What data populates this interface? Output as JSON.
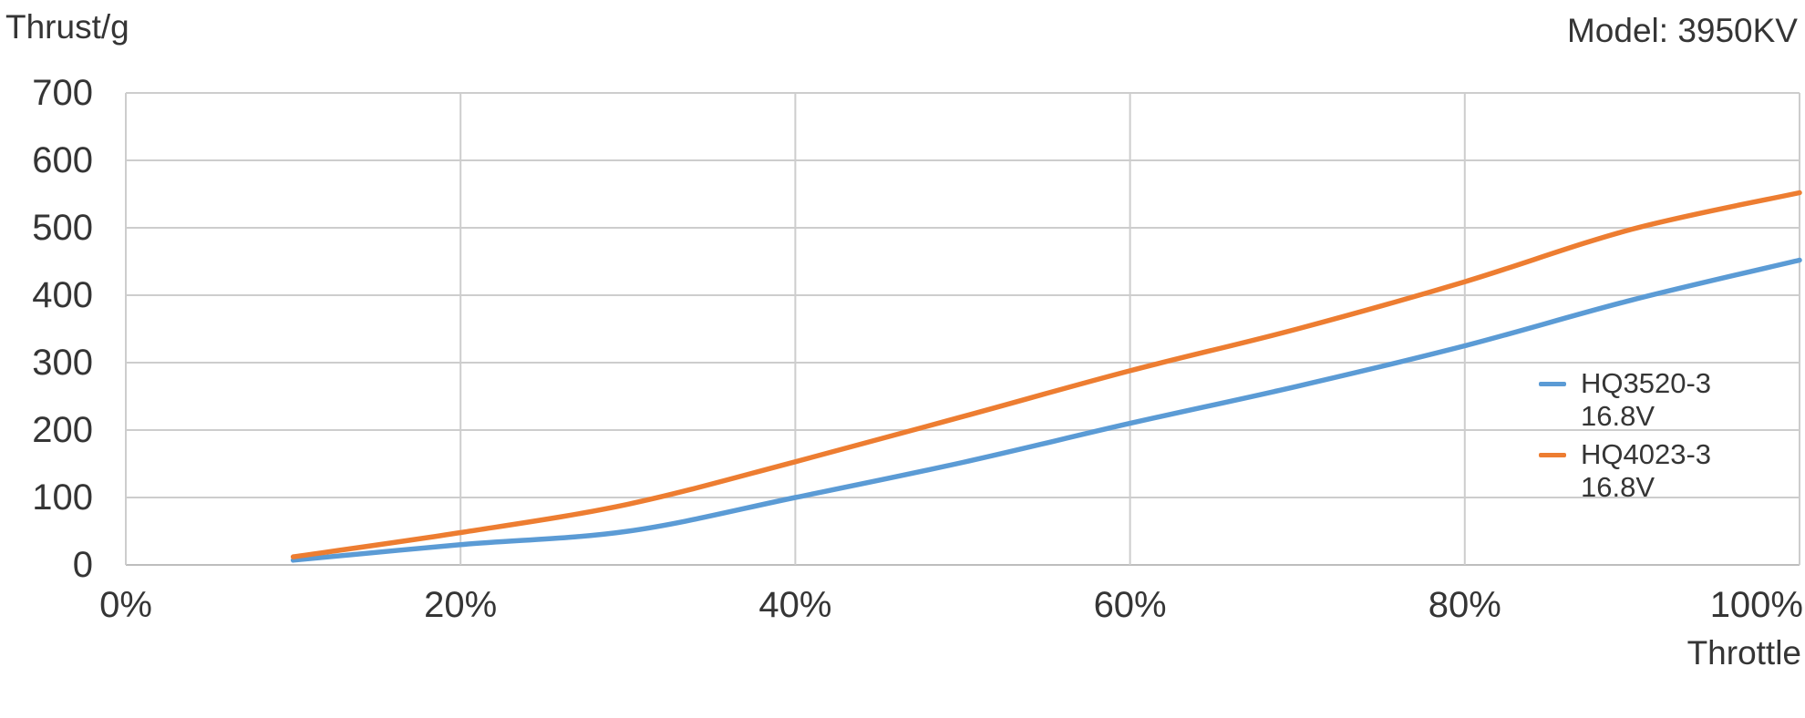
{
  "header": {
    "y_axis_title": "Thrust/g",
    "model_label": "Model: 3950KV",
    "x_axis_title": "Throttle"
  },
  "chart_data": {
    "type": "line",
    "title": "",
    "ylabel": "Thrust/g",
    "xlabel": "Throttle",
    "x": [
      10,
      20,
      30,
      40,
      50,
      60,
      70,
      80,
      90,
      100
    ],
    "x_unit": "%",
    "series": [
      {
        "name": "HQ3520-3 16.8V",
        "label_lines": [
          "HQ3520-3",
          "16.8V"
        ],
        "color": "#5B9BD5",
        "values": [
          7,
          30,
          50,
          100,
          152,
          210,
          265,
          325,
          393,
          452
        ]
      },
      {
        "name": "HQ4023-3 16.8V",
        "label_lines": [
          "HQ4023-3",
          "16.8V"
        ],
        "color": "#ED7D31",
        "values": [
          12,
          48,
          90,
          153,
          220,
          288,
          350,
          420,
          498,
          552
        ]
      }
    ],
    "x_ticks": [
      "0%",
      "20%",
      "40%",
      "60%",
      "80%",
      "100%"
    ],
    "x_tick_values": [
      0,
      20,
      40,
      60,
      80,
      100
    ],
    "y_ticks": [
      "0",
      "100",
      "200",
      "300",
      "400",
      "500",
      "600",
      "700"
    ],
    "y_tick_values": [
      0,
      100,
      200,
      300,
      400,
      500,
      600,
      700
    ],
    "xlim": [
      0,
      100
    ],
    "ylim": [
      0,
      700
    ],
    "grid": true,
    "smooth": true,
    "legend_position": "inside-right",
    "colors": {
      "gridline": "#CDCDCD",
      "axis_line": "#BDBDBD",
      "text": "#353535",
      "background": "#FFFFFF"
    }
  }
}
